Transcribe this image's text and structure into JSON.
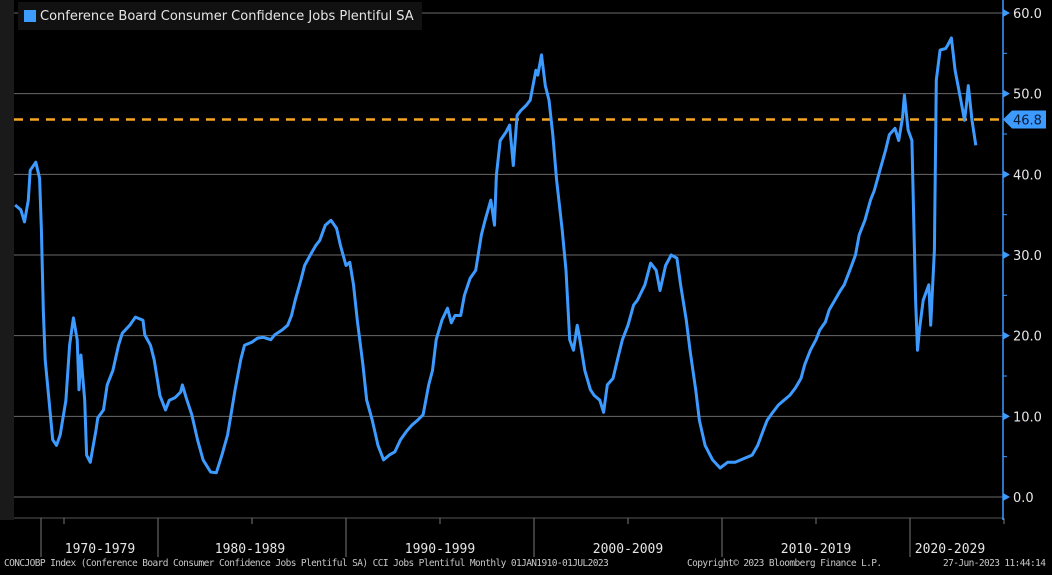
{
  "chart_data": {
    "type": "line",
    "title": "Conference Board Consumer Confidence Jobs Plentiful SA",
    "legend": [
      {
        "name": "Conference Board Consumer Confidence Jobs Plentiful SA",
        "color": "#3d9bff"
      }
    ],
    "legend_position": "top-left",
    "xlabel": "",
    "ylabel": "",
    "x_tick_labels": [
      "1970-1979",
      "1980-1989",
      "1990-1999",
      "2000-2009",
      "2010-2019",
      "2020-2029"
    ],
    "xlim": [
      1972.4,
      2025.25
    ],
    "ylim": [
      0,
      60
    ],
    "y_ticks": [
      0,
      10,
      20,
      30,
      40,
      50,
      60
    ],
    "y_tick_labels": [
      "0.0",
      "10.0",
      "20.0",
      "30.0",
      "40.0",
      "50.0",
      "60.0"
    ],
    "y_axis_side": "right",
    "grid": true,
    "reference_line": {
      "value": 46.8,
      "label": "46.8",
      "color": "#f5a623",
      "style": "dashed"
    },
    "series": [
      {
        "name": "Conference Board Consumer Confidence Jobs Plentiful SA",
        "color": "#3d9bff",
        "points": [
          [
            1972.4,
            36.2
          ],
          [
            1972.7,
            35.6
          ],
          [
            1972.9,
            34.1
          ],
          [
            1973.1,
            36.8
          ],
          [
            1973.2,
            40.5
          ],
          [
            1973.5,
            41.5
          ],
          [
            1973.7,
            39.5
          ],
          [
            1973.8,
            33.1
          ],
          [
            1973.9,
            23.2
          ],
          [
            1974.0,
            17.0
          ],
          [
            1974.2,
            12.0
          ],
          [
            1974.4,
            7.1
          ],
          [
            1974.6,
            6.4
          ],
          [
            1974.8,
            7.7
          ],
          [
            1975.1,
            12.0
          ],
          [
            1975.3,
            18.8
          ],
          [
            1975.5,
            22.2
          ],
          [
            1975.7,
            19.5
          ],
          [
            1975.8,
            13.3
          ],
          [
            1975.9,
            17.6
          ],
          [
            1976.1,
            12.0
          ],
          [
            1976.2,
            5.2
          ],
          [
            1976.4,
            4.3
          ],
          [
            1976.7,
            8.3
          ],
          [
            1976.8,
            9.8
          ],
          [
            1977.1,
            10.8
          ],
          [
            1977.3,
            13.9
          ],
          [
            1977.6,
            15.7
          ],
          [
            1977.9,
            18.8
          ],
          [
            1978.1,
            20.3
          ],
          [
            1978.5,
            21.3
          ],
          [
            1978.8,
            22.3
          ],
          [
            1979.2,
            21.9
          ],
          [
            1979.3,
            20.1
          ],
          [
            1979.6,
            18.8
          ],
          [
            1979.8,
            17.0
          ],
          [
            1980.1,
            12.6
          ],
          [
            1980.4,
            10.8
          ],
          [
            1980.6,
            12.0
          ],
          [
            1980.9,
            12.3
          ],
          [
            1981.2,
            13.0
          ],
          [
            1981.3,
            13.9
          ],
          [
            1981.5,
            12.3
          ],
          [
            1981.8,
            10.2
          ],
          [
            1982.1,
            7.1
          ],
          [
            1982.4,
            4.6
          ],
          [
            1982.8,
            3.1
          ],
          [
            1983.1,
            3.0
          ],
          [
            1983.4,
            5.2
          ],
          [
            1983.7,
            7.7
          ],
          [
            1984.1,
            13.3
          ],
          [
            1984.4,
            17.0
          ],
          [
            1984.6,
            18.8
          ],
          [
            1985.0,
            19.2
          ],
          [
            1985.3,
            19.7
          ],
          [
            1985.6,
            19.8
          ],
          [
            1986.0,
            19.5
          ],
          [
            1986.2,
            20.1
          ],
          [
            1986.6,
            20.7
          ],
          [
            1986.9,
            21.3
          ],
          [
            1987.1,
            22.5
          ],
          [
            1987.3,
            24.4
          ],
          [
            1987.6,
            26.9
          ],
          [
            1987.8,
            28.7
          ],
          [
            1988.1,
            30.0
          ],
          [
            1988.4,
            31.2
          ],
          [
            1988.6,
            31.8
          ],
          [
            1988.9,
            33.7
          ],
          [
            1989.2,
            34.3
          ],
          [
            1989.5,
            33.3
          ],
          [
            1989.7,
            31.2
          ],
          [
            1990.0,
            28.7
          ],
          [
            1990.2,
            29.1
          ],
          [
            1990.4,
            26.3
          ],
          [
            1990.6,
            21.9
          ],
          [
            1990.9,
            16.4
          ],
          [
            1991.1,
            12.0
          ],
          [
            1991.4,
            9.5
          ],
          [
            1991.7,
            6.4
          ],
          [
            1992.0,
            4.6
          ],
          [
            1992.3,
            5.2
          ],
          [
            1992.6,
            5.6
          ],
          [
            1992.9,
            7.1
          ],
          [
            1993.2,
            8.1
          ],
          [
            1993.5,
            8.9
          ],
          [
            1993.8,
            9.5
          ],
          [
            1994.1,
            10.2
          ],
          [
            1994.4,
            13.9
          ],
          [
            1994.6,
            15.7
          ],
          [
            1994.8,
            19.5
          ],
          [
            1995.1,
            21.9
          ],
          [
            1995.4,
            23.4
          ],
          [
            1995.6,
            21.6
          ],
          [
            1995.8,
            22.5
          ],
          [
            1996.1,
            22.5
          ],
          [
            1996.3,
            25.0
          ],
          [
            1996.6,
            27.1
          ],
          [
            1996.9,
            28.1
          ],
          [
            1997.2,
            32.5
          ],
          [
            1997.4,
            34.3
          ],
          [
            1997.7,
            36.8
          ],
          [
            1997.9,
            33.7
          ],
          [
            1998.0,
            39.9
          ],
          [
            1998.2,
            44.2
          ],
          [
            1998.5,
            45.2
          ],
          [
            1998.7,
            46.1
          ],
          [
            1998.9,
            41.1
          ],
          [
            1999.1,
            47.3
          ],
          [
            1999.3,
            47.9
          ],
          [
            1999.6,
            48.6
          ],
          [
            1999.8,
            49.2
          ],
          [
            2000.1,
            52.9
          ],
          [
            2000.2,
            52.3
          ],
          [
            2000.4,
            54.8
          ],
          [
            2000.6,
            51.0
          ],
          [
            2000.8,
            49.2
          ],
          [
            2001.0,
            44.9
          ],
          [
            2001.2,
            39.3
          ],
          [
            2001.5,
            33.1
          ],
          [
            2001.7,
            28.1
          ],
          [
            2001.9,
            19.5
          ],
          [
            2002.1,
            18.2
          ],
          [
            2002.3,
            21.3
          ],
          [
            2002.4,
            20.1
          ],
          [
            2002.7,
            15.7
          ],
          [
            2003.0,
            13.3
          ],
          [
            2003.2,
            12.6
          ],
          [
            2003.5,
            12.0
          ],
          [
            2003.7,
            10.5
          ],
          [
            2003.9,
            13.9
          ],
          [
            2004.2,
            14.7
          ],
          [
            2004.5,
            17.6
          ],
          [
            2004.7,
            19.5
          ],
          [
            2005.0,
            21.3
          ],
          [
            2005.3,
            23.8
          ],
          [
            2005.5,
            24.4
          ],
          [
            2005.9,
            26.3
          ],
          [
            2006.2,
            29.0
          ],
          [
            2006.5,
            28.1
          ],
          [
            2006.7,
            25.6
          ],
          [
            2007.0,
            28.7
          ],
          [
            2007.3,
            30.0
          ],
          [
            2007.6,
            29.6
          ],
          [
            2007.8,
            26.3
          ],
          [
            2008.1,
            21.9
          ],
          [
            2008.3,
            18.2
          ],
          [
            2008.6,
            13.3
          ],
          [
            2008.8,
            9.5
          ],
          [
            2009.1,
            6.4
          ],
          [
            2009.5,
            4.6
          ],
          [
            2009.9,
            3.6
          ],
          [
            2010.3,
            4.3
          ],
          [
            2010.7,
            4.3
          ],
          [
            2011.2,
            4.8
          ],
          [
            2011.6,
            5.2
          ],
          [
            2011.9,
            6.4
          ],
          [
            2012.2,
            8.3
          ],
          [
            2012.4,
            9.5
          ],
          [
            2012.7,
            10.5
          ],
          [
            2013.0,
            11.4
          ],
          [
            2013.3,
            12.0
          ],
          [
            2013.6,
            12.6
          ],
          [
            2013.9,
            13.5
          ],
          [
            2014.2,
            14.7
          ],
          [
            2014.4,
            16.4
          ],
          [
            2014.7,
            18.2
          ],
          [
            2015.0,
            19.5
          ],
          [
            2015.2,
            20.7
          ],
          [
            2015.5,
            21.7
          ],
          [
            2015.7,
            23.2
          ],
          [
            2016.0,
            24.4
          ],
          [
            2016.3,
            25.6
          ],
          [
            2016.5,
            26.3
          ],
          [
            2016.8,
            28.1
          ],
          [
            2017.1,
            30.0
          ],
          [
            2017.3,
            32.5
          ],
          [
            2017.6,
            34.3
          ],
          [
            2017.9,
            36.8
          ],
          [
            2018.1,
            38.0
          ],
          [
            2018.4,
            40.5
          ],
          [
            2018.7,
            43.0
          ],
          [
            2018.9,
            44.9
          ],
          [
            2019.2,
            45.7
          ],
          [
            2019.4,
            44.2
          ],
          [
            2019.6,
            47.0
          ],
          [
            2019.7,
            49.8
          ],
          [
            2019.9,
            45.5
          ],
          [
            2020.1,
            44.2
          ],
          [
            2020.3,
            24.4
          ],
          [
            2020.4,
            18.2
          ],
          [
            2020.5,
            20.7
          ],
          [
            2020.7,
            24.4
          ],
          [
            2021.0,
            26.3
          ],
          [
            2021.1,
            21.3
          ],
          [
            2021.3,
            30.6
          ],
          [
            2021.4,
            51.7
          ],
          [
            2021.6,
            55.4
          ],
          [
            2021.9,
            55.6
          ],
          [
            2022.0,
            56.0
          ],
          [
            2022.2,
            56.9
          ],
          [
            2022.4,
            52.9
          ],
          [
            2022.7,
            49.2
          ],
          [
            2022.9,
            46.7
          ],
          [
            2023.0,
            48.6
          ],
          [
            2023.1,
            51.0
          ],
          [
            2023.3,
            46.7
          ],
          [
            2023.5,
            43.6
          ]
        ]
      }
    ]
  },
  "footer": {
    "source": "CONCJOBP Index (Conference Board Consumer Confidence Jobs Plentiful SA) CCI Jobs Plentiful  Monthly 01JAN1910-01JUL2023",
    "copyright": "Copyright© 2023 Bloomberg Finance L.P.",
    "timestamp": "27-Jun-2023 11:44:14"
  }
}
